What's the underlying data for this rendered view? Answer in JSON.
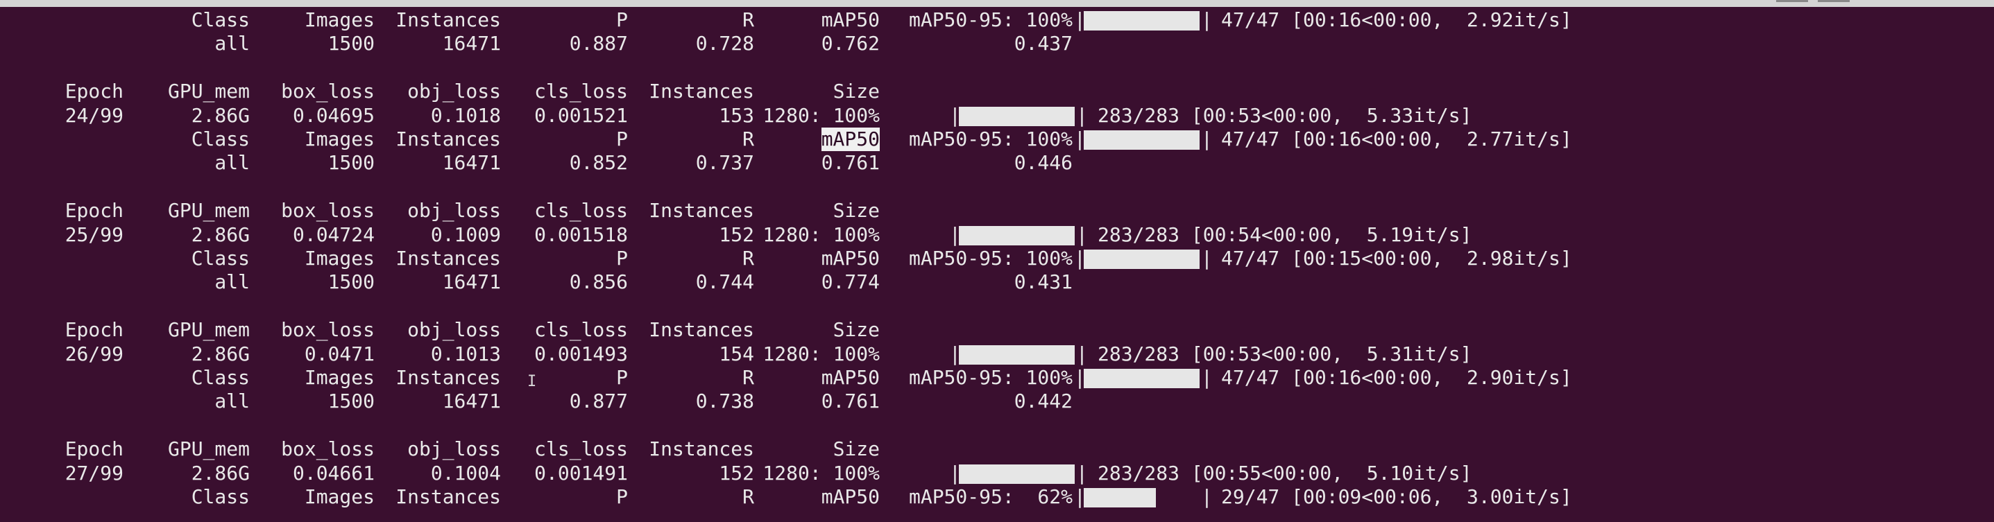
{
  "terminal": {
    "lines": [
      {
        "kind": "val_hdr",
        "cells": [
          "Class",
          "Images",
          "Instances",
          "P",
          "R",
          "mAP50",
          "mAP50-95: 100%"
        ],
        "bar_fill": 1.0,
        "progress": "47/47 [00:16<00:00,  2.92it/s]"
      },
      {
        "kind": "val_row",
        "cells": [
          "all",
          "1500",
          "16471",
          "0.887",
          "0.728",
          "0.762",
          "0.437"
        ]
      },
      {
        "kind": "blank"
      },
      {
        "kind": "train_hdr",
        "cells": [
          "Epoch",
          "GPU_mem",
          "box_loss",
          "obj_loss",
          "cls_loss",
          "Instances",
          "Size"
        ]
      },
      {
        "kind": "train_row",
        "cells": [
          "24/99",
          "2.86G",
          "0.04695",
          "0.1018",
          "0.001521",
          "153",
          "1280: 100%"
        ],
        "bar_fill": 1.0,
        "progress": "283/283 [00:53<00:00,  5.33it/s]"
      },
      {
        "kind": "val_hdr",
        "cells": [
          "Class",
          "Images",
          "Instances",
          "P",
          "R",
          "mAP50",
          "mAP50-95: 100%"
        ],
        "bar_fill": 1.0,
        "progress": "47/47 [00:16<00:00,  2.77it/s]",
        "selected": 5
      },
      {
        "kind": "val_row",
        "cells": [
          "all",
          "1500",
          "16471",
          "0.852",
          "0.737",
          "0.761",
          "0.446"
        ]
      },
      {
        "kind": "blank"
      },
      {
        "kind": "train_hdr",
        "cells": [
          "Epoch",
          "GPU_mem",
          "box_loss",
          "obj_loss",
          "cls_loss",
          "Instances",
          "Size"
        ]
      },
      {
        "kind": "train_row",
        "cells": [
          "25/99",
          "2.86G",
          "0.04724",
          "0.1009",
          "0.001518",
          "152",
          "1280: 100%"
        ],
        "bar_fill": 1.0,
        "progress": "283/283 [00:54<00:00,  5.19it/s]"
      },
      {
        "kind": "val_hdr",
        "cells": [
          "Class",
          "Images",
          "Instances",
          "P",
          "R",
          "mAP50",
          "mAP50-95: 100%"
        ],
        "bar_fill": 1.0,
        "progress": "47/47 [00:15<00:00,  2.98it/s]"
      },
      {
        "kind": "val_row",
        "cells": [
          "all",
          "1500",
          "16471",
          "0.856",
          "0.744",
          "0.774",
          "0.431"
        ]
      },
      {
        "kind": "blank"
      },
      {
        "kind": "train_hdr",
        "cells": [
          "Epoch",
          "GPU_mem",
          "box_loss",
          "obj_loss",
          "cls_loss",
          "Instances",
          "Size"
        ]
      },
      {
        "kind": "train_row",
        "cells": [
          "26/99",
          "2.86G",
          "0.0471",
          "0.1013",
          "0.001493",
          "154",
          "1280: 100%"
        ],
        "bar_fill": 1.0,
        "progress": "283/283 [00:53<00:00,  5.31it/s]"
      },
      {
        "kind": "val_hdr",
        "cells": [
          "Class",
          "Images",
          "Instances",
          "P",
          "R",
          "mAP50",
          "mAP50-95: 100%"
        ],
        "bar_fill": 1.0,
        "progress": "47/47 [00:16<00:00,  2.90it/s]"
      },
      {
        "kind": "val_row",
        "cells": [
          "all",
          "1500",
          "16471",
          "0.877",
          "0.738",
          "0.761",
          "0.442"
        ]
      },
      {
        "kind": "blank"
      },
      {
        "kind": "train_hdr",
        "cells": [
          "Epoch",
          "GPU_mem",
          "box_loss",
          "obj_loss",
          "cls_loss",
          "Instances",
          "Size"
        ]
      },
      {
        "kind": "train_row",
        "cells": [
          "27/99",
          "2.86G",
          "0.04661",
          "0.1004",
          "0.001491",
          "152",
          "1280: 100%"
        ],
        "bar_fill": 1.0,
        "progress": "283/283 [00:55<00:00,  5.10it/s]"
      },
      {
        "kind": "val_hdr",
        "cells": [
          "Class",
          "Images",
          "Instances",
          "P",
          "R",
          "mAP50",
          "mAP50-95:  62%"
        ],
        "bar_fill": 0.62,
        "progress": "29/47 [00:09<00:06,  3.00it/s]"
      }
    ]
  },
  "colors": {
    "background": "#3a0f2f",
    "text": "#e9e9e9",
    "bar": "#e6e6e6"
  }
}
